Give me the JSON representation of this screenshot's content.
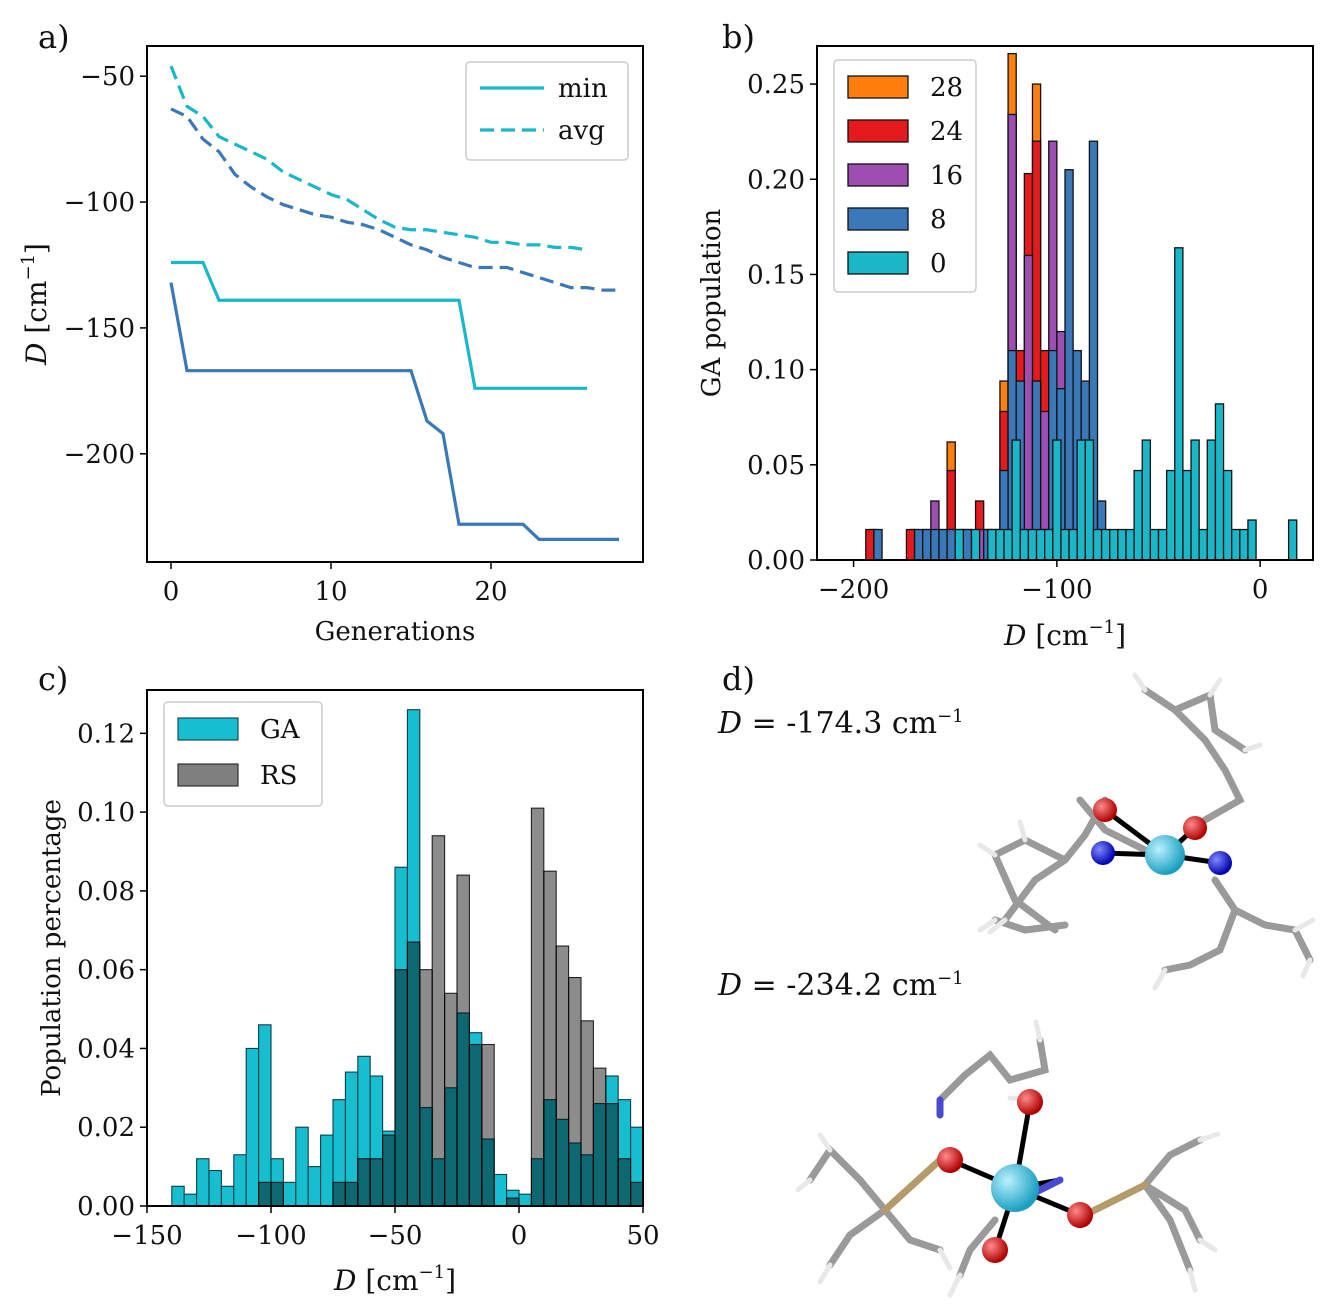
{
  "panel_labels": {
    "a": "a)",
    "b": "b)",
    "c": "c)",
    "d": "d)"
  },
  "colors": {
    "c0": "#1ab7c9",
    "c8": "#3a78b8",
    "c16": "#9c4fb0",
    "c24": "#e41a1c",
    "c28": "#ff7f0e",
    "ga": "#17becf",
    "rs": "#7f7f7f"
  },
  "chart_data": [
    {
      "id": "a",
      "type": "line",
      "xlabel": "Generations",
      "ylabel": "D [cm⁻¹]",
      "xlim": [
        -1.5,
        29.5
      ],
      "ylim": [
        -243,
        -38
      ],
      "xticks": [
        0,
        10,
        20
      ],
      "yticks": [
        -50,
        -100,
        -150,
        -200
      ],
      "legend": {
        "position": "top-right",
        "entries": [
          "min",
          "avg"
        ]
      },
      "series": [
        {
          "name": "min (run 1)",
          "style": "solid",
          "color": "#1ab7c9",
          "x": [
            0,
            1,
            2,
            3,
            4,
            5,
            6,
            7,
            8,
            9,
            10,
            11,
            12,
            13,
            14,
            15,
            16,
            17,
            18,
            19,
            20,
            21,
            22,
            23,
            24,
            25,
            26
          ],
          "y": [
            -124,
            -124,
            -124,
            -139,
            -139,
            -139,
            -139,
            -139,
            -139,
            -139,
            -139,
            -139,
            -139,
            -139,
            -139,
            -139,
            -139,
            -139,
            -139,
            -174,
            -174,
            -174,
            -174,
            -174,
            -174,
            -174,
            -174
          ]
        },
        {
          "name": "avg (run 1)",
          "style": "dashed",
          "color": "#1ab7c9",
          "x": [
            0,
            1,
            2,
            3,
            4,
            5,
            6,
            7,
            8,
            9,
            10,
            11,
            12,
            13,
            14,
            15,
            16,
            17,
            18,
            19,
            20,
            21,
            22,
            23,
            24,
            25,
            26
          ],
          "y": [
            -46,
            -62,
            -66,
            -74,
            -77,
            -80,
            -83,
            -88,
            -91,
            -94,
            -97,
            -99,
            -103,
            -107,
            -110,
            -111,
            -111,
            -112,
            -113,
            -114,
            -116,
            -116,
            -117,
            -117,
            -118,
            -118,
            -119
          ]
        },
        {
          "name": "min (run 2)",
          "style": "solid",
          "color": "#3a78b8",
          "x": [
            0,
            1,
            2,
            3,
            4,
            5,
            6,
            7,
            8,
            9,
            10,
            11,
            12,
            13,
            14,
            15,
            16,
            17,
            18,
            19,
            20,
            21,
            22,
            23,
            24,
            25,
            26,
            27,
            28
          ],
          "y": [
            -132,
            -167,
            -167,
            -167,
            -167,
            -167,
            -167,
            -167,
            -167,
            -167,
            -167,
            -167,
            -167,
            -167,
            -167,
            -167,
            -187,
            -192,
            -228,
            -228,
            -228,
            -228,
            -228,
            -234,
            -234,
            -234,
            -234,
            -234,
            -234
          ]
        },
        {
          "name": "avg (run 2)",
          "style": "dashed",
          "color": "#3a78b8",
          "x": [
            0,
            1,
            2,
            3,
            4,
            5,
            6,
            7,
            8,
            9,
            10,
            11,
            12,
            13,
            14,
            15,
            16,
            17,
            18,
            19,
            20,
            21,
            22,
            23,
            24,
            25,
            26,
            27,
            28
          ],
          "y": [
            -63,
            -66,
            -75,
            -80,
            -89,
            -94,
            -98,
            -101,
            -103,
            -105,
            -106,
            -108,
            -109,
            -111,
            -114,
            -117,
            -119,
            -122,
            -124,
            -126,
            -126,
            -126,
            -128,
            -130,
            -132,
            -134,
            -134,
            -135,
            -135
          ]
        }
      ]
    },
    {
      "id": "b",
      "type": "bar",
      "stacked_overlay": true,
      "xlabel": "D [cm⁻¹]",
      "ylabel": "GA population",
      "xlim": [
        -218,
        26
      ],
      "ylim": [
        0,
        0.27
      ],
      "xticks": [
        -200,
        -100,
        0
      ],
      "yticks": [
        0.0,
        0.05,
        0.1,
        0.15,
        0.2,
        0.25
      ],
      "legend": {
        "position": "top-left",
        "entries": [
          "28",
          "24",
          "16",
          "8",
          "0"
        ]
      },
      "bin_width": 4,
      "series": [
        {
          "name": "28",
          "color": "#ff7f0e",
          "bins": [
            [
              -192,
              0.016
            ],
            [
              -172,
              0.016
            ],
            [
              -154,
              0.062
            ],
            [
              -128,
              0.094
            ],
            [
              -124,
              0.266
            ],
            [
              -112,
              0.25
            ]
          ]
        },
        {
          "name": "24",
          "color": "#e41a1c",
          "bins": [
            [
              -194,
              0.016
            ],
            [
              -174,
              0.016
            ],
            [
              -154,
              0.047
            ],
            [
              -140,
              0.031
            ],
            [
              -128,
              0.078
            ],
            [
              -124,
              0.234
            ],
            [
              -120,
              0.11
            ],
            [
              -116,
              0.203
            ],
            [
              -112,
              0.22
            ],
            [
              -108,
              0.11
            ],
            [
              -104,
              0.047
            ],
            [
              -100,
              0.047
            ]
          ]
        },
        {
          "name": "16",
          "color": "#9c4fb0",
          "bins": [
            [
              -166,
              0.016
            ],
            [
              -162,
              0.031
            ],
            [
              -158,
              0.016
            ],
            [
              -154,
              0.016
            ],
            [
              -150,
              0.016
            ],
            [
              -146,
              0.016
            ],
            [
              -140,
              0.016
            ],
            [
              -136,
              0.016
            ],
            [
              -128,
              0.016
            ],
            [
              -124,
              0.234
            ],
            [
              -116,
              0.16
            ],
            [
              -112,
              0.094
            ],
            [
              -108,
              0.078
            ],
            [
              -104,
              0.22
            ],
            [
              -100,
              0.12
            ],
            [
              -96,
              0.078
            ],
            [
              -88,
              0.031
            ]
          ]
        },
        {
          "name": "8",
          "color": "#3a78b8",
          "bins": [
            [
              -190,
              0.016
            ],
            [
              -170,
              0.016
            ],
            [
              -166,
              0.016
            ],
            [
              -162,
              0.016
            ],
            [
              -158,
              0.016
            ],
            [
              -154,
              0.016
            ],
            [
              -146,
              0.016
            ],
            [
              -136,
              0.016
            ],
            [
              -132,
              0.016
            ],
            [
              -128,
              0.047
            ],
            [
              -124,
              0.11
            ],
            [
              -120,
              0.094
            ],
            [
              -112,
              0.094
            ],
            [
              -108,
              0.016
            ],
            [
              -104,
              0.11
            ],
            [
              -100,
              0.09
            ],
            [
              -96,
              0.205
            ],
            [
              -92,
              0.11
            ],
            [
              -88,
              0.094
            ],
            [
              -84,
              0.22
            ],
            [
              -80,
              0.031
            ]
          ]
        },
        {
          "name": "0",
          "color": "#1ab7c9",
          "bins": [
            [
              -150,
              0.016
            ],
            [
              -142,
              0.016
            ],
            [
              -134,
              0.016
            ],
            [
              -130,
              0.016
            ],
            [
              -126,
              0.016
            ],
            [
              -122,
              0.063
            ],
            [
              -118,
              0.016
            ],
            [
              -114,
              0.016
            ],
            [
              -110,
              0.016
            ],
            [
              -106,
              0.016
            ],
            [
              -102,
              0.063
            ],
            [
              -98,
              0.016
            ],
            [
              -94,
              0.016
            ],
            [
              -90,
              0.063
            ],
            [
              -86,
              0.063
            ],
            [
              -82,
              0.016
            ],
            [
              -78,
              0.016
            ],
            [
              -74,
              0.016
            ],
            [
              -70,
              0.016
            ],
            [
              -66,
              0.016
            ],
            [
              -62,
              0.047
            ],
            [
              -58,
              0.063
            ],
            [
              -54,
              0.016
            ],
            [
              -50,
              0.016
            ],
            [
              -46,
              0.047
            ],
            [
              -42,
              0.164
            ],
            [
              -38,
              0.047
            ],
            [
              -34,
              0.063
            ],
            [
              -30,
              0.016
            ],
            [
              -26,
              0.063
            ],
            [
              -22,
              0.082
            ],
            [
              -18,
              0.047
            ],
            [
              -14,
              0.016
            ],
            [
              -10,
              0.016
            ],
            [
              -6,
              0.021
            ],
            [
              14,
              0.021
            ]
          ]
        }
      ]
    },
    {
      "id": "c",
      "type": "bar",
      "overlay": true,
      "xlabel": "D [cm⁻¹]",
      "ylabel": "Population percentage",
      "xlim": [
        -150,
        50
      ],
      "ylim": [
        0,
        0.131
      ],
      "xticks": [
        -150,
        -100,
        -50,
        0,
        50
      ],
      "yticks": [
        0.0,
        0.02,
        0.04,
        0.06,
        0.08,
        0.1,
        0.12
      ],
      "legend": {
        "position": "top-left",
        "entries": [
          "GA",
          "RS"
        ]
      },
      "bin_width": 5,
      "series": [
        {
          "name": "GA",
          "color": "#17becf",
          "x": [
            -140,
            -135,
            -130,
            -125,
            -120,
            -115,
            -110,
            -105,
            -100,
            -95,
            -90,
            -85,
            -80,
            -75,
            -70,
            -65,
            -60,
            -55,
            -50,
            -45,
            -40,
            -35,
            -30,
            -25,
            -20,
            -15,
            -10,
            -5,
            0,
            5,
            10,
            15,
            20,
            25,
            30,
            35,
            40,
            45
          ],
          "values": [
            0.005,
            0.003,
            0.012,
            0.009,
            0.005,
            0.013,
            0.04,
            0.046,
            0.012,
            0.006,
            0.02,
            0.01,
            0.018,
            0.027,
            0.034,
            0.038,
            0.033,
            0.019,
            0.086,
            0.126,
            0.025,
            0.012,
            0.03,
            0.049,
            0.044,
            0.017,
            0.008,
            0.004,
            0.003,
            0.012,
            0.027,
            0.022,
            0.016,
            0.013,
            0.026,
            0.033,
            0.027,
            0.02
          ]
        },
        {
          "name": "RS",
          "color": "#7f7f7f",
          "x": [
            -140,
            -135,
            -130,
            -125,
            -120,
            -115,
            -110,
            -105,
            -100,
            -95,
            -90,
            -85,
            -80,
            -75,
            -70,
            -65,
            -60,
            -55,
            -50,
            -45,
            -40,
            -35,
            -30,
            -25,
            -20,
            -15,
            -10,
            -5,
            0,
            5,
            10,
            15,
            20,
            25,
            30,
            35,
            40,
            45
          ],
          "values": [
            0,
            0,
            0,
            0,
            0,
            0,
            0,
            0.006,
            0.006,
            0,
            0,
            0,
            0,
            0.006,
            0.006,
            0.012,
            0.012,
            0.018,
            0.06,
            0.067,
            0.06,
            0.094,
            0.054,
            0.084,
            0.041,
            0.041,
            0,
            0.002,
            0,
            0.101,
            0.085,
            0.066,
            0.058,
            0.047,
            0.035,
            0.026,
            0.012,
            0.006
          ]
        }
      ]
    }
  ],
  "panel_d": {
    "line1_var": "D",
    "line1_text": " = -174.3 cm",
    "line1_sup": "−1",
    "line2_var": "D",
    "line2_text": " = -234.2 cm",
    "line2_sup": "−1"
  }
}
